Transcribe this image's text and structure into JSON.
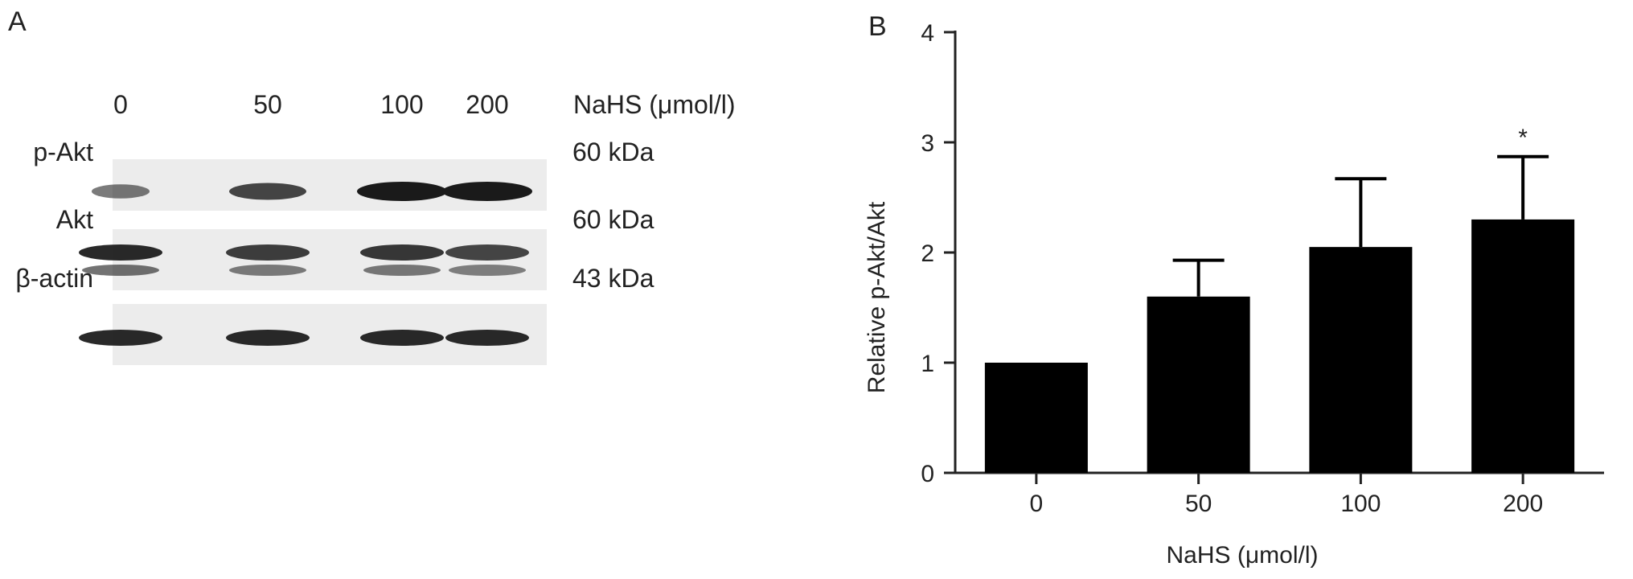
{
  "panels": {
    "a_letter": "A",
    "b_letter": "B"
  },
  "blot": {
    "condition_label": "NaHS (μmol/l)",
    "lanes": [
      "0",
      "50",
      "100",
      "200"
    ],
    "rows": [
      {
        "name": "p-Akt",
        "size": "60 kDa",
        "intensity": [
          0.35,
          0.7,
          1.0,
          1.0
        ]
      },
      {
        "name": "Akt",
        "size": "60 kDa",
        "intensity": [
          0.9,
          0.75,
          0.8,
          0.7
        ]
      },
      {
        "name": "β-actin",
        "size": "43 kDa",
        "intensity": [
          0.9,
          0.9,
          0.9,
          0.9
        ]
      }
    ],
    "band_color": "#1a1a1a"
  },
  "chart_data": {
    "type": "bar",
    "categories": [
      "0",
      "50",
      "100",
      "200"
    ],
    "values": [
      1.0,
      1.6,
      2.05,
      2.3
    ],
    "errors": [
      0,
      0.33,
      0.62,
      0.57
    ],
    "significance": [
      "",
      "",
      "",
      "*"
    ],
    "xlabel": "NaHS (μmol/l)",
    "ylabel": "Relative p-Akt/Akt",
    "ylim": [
      0,
      4
    ],
    "yticks": [
      "0",
      "1",
      "2",
      "3",
      "4"
    ],
    "bar_color": "#000000",
    "grid": false
  }
}
